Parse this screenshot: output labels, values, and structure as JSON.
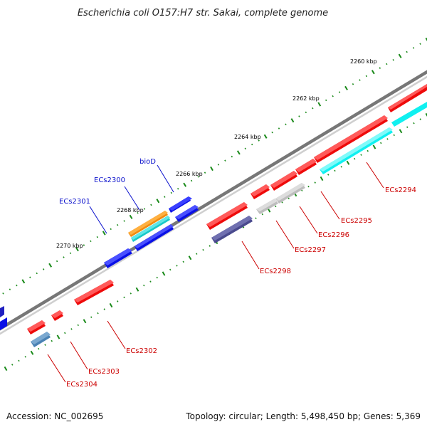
{
  "title": "Escherichia coli O157:H7 str. Sakai, complete genome",
  "footer": {
    "accession": "Accession: NC_002695",
    "summary": "Topology: circular; Length: 5,498,450 bp; Genes: 5,369"
  },
  "scale_labels": [
    "2260 kbp",
    "2262 kbp",
    "2264 kbp",
    "2266 kbp",
    "2268 kbp",
    "2270 kbp"
  ],
  "colors": {
    "forward_cds": "#0a10e6",
    "reverse_cds": "#ee0a0a",
    "forward_label": "#0a10cc",
    "reverse_label": "#cc0000",
    "backbone": "#6e6e6e",
    "tick": "#1a8a1a",
    "orange": "#f08a10",
    "teal": "#18c8c8",
    "cyan": "#10f0f0",
    "grey": "#bdbdbd",
    "slate": "#4a4a8e",
    "steel": "#4a82b4"
  },
  "gene_labels": {
    "forward": [
      "bioD",
      "ECs2300",
      "ECs2301"
    ],
    "reverse": [
      "ECs2294",
      "ECs2295",
      "ECs2296",
      "ECs2297",
      "ECs2298",
      "ECs2302",
      "ECs2303",
      "ECs2304"
    ]
  }
}
